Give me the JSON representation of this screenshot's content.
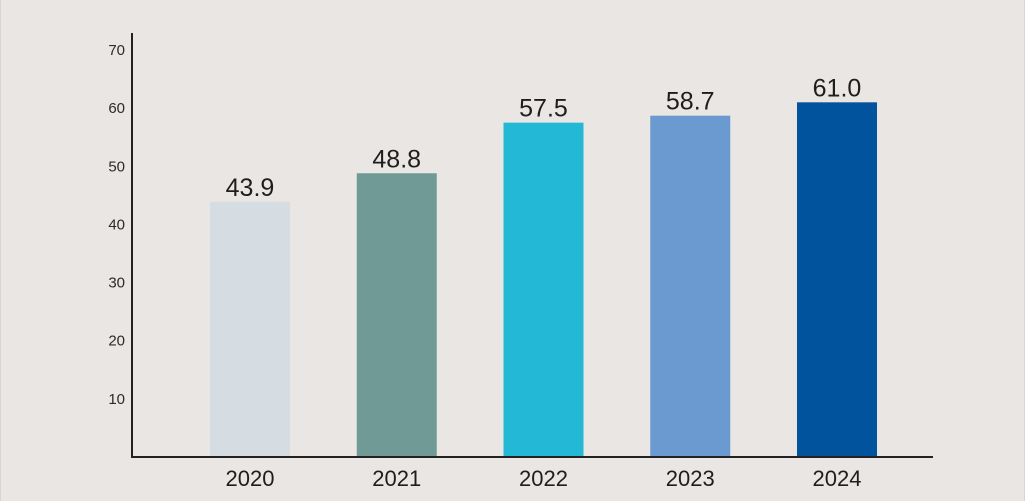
{
  "chart_data": {
    "type": "bar",
    "title": "",
    "xlabel": "",
    "ylabel": "",
    "categories": [
      "2020",
      "2021",
      "2022",
      "2023",
      "2024"
    ],
    "values": [
      43.9,
      48.8,
      57.5,
      58.7,
      61.0
    ],
    "value_labels": [
      "43.9",
      "48.8",
      "57.5",
      "58.7",
      "61.0"
    ],
    "bar_colors": [
      "#d5dde3",
      "#6f9a96",
      "#22b8d6",
      "#6a9ad0",
      "#00539c"
    ],
    "ylim": [
      0,
      70
    ],
    "yticks": [
      10,
      20,
      30,
      40,
      50,
      60,
      70
    ],
    "grid": false,
    "legend": "none"
  },
  "colors": {
    "background": "#e9e6e3",
    "axis": "#222222",
    "text": "#1e1e1e"
  }
}
